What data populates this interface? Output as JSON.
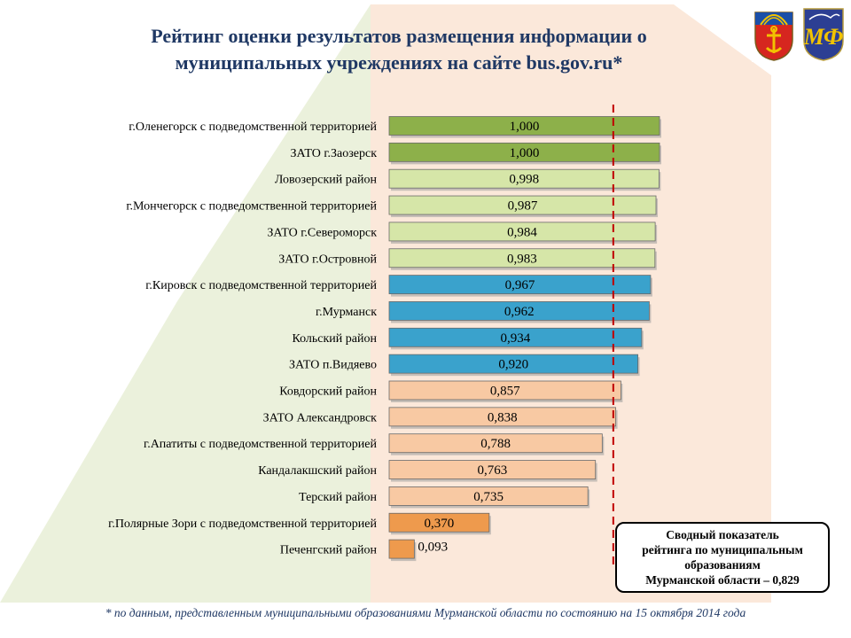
{
  "header": {
    "title_line1": "Рейтинг оценки результатов  размещения  информации о",
    "title_line2": "муниципальных учреждениях на сайте bus.gov.ru*"
  },
  "emblems": [
    "murmansk-region-coat-of-arms",
    "ministry-of-finance-logo"
  ],
  "summary_box": {
    "line1": "Сводный показатель",
    "line2": "рейтинга по муниципальным",
    "line3": "образованиям",
    "line4": "Мурманской области – 0,829"
  },
  "footnote": "* по данным, представленным  муниципальными образованиями Мурманской области по состоянию на 15 октября 2014 года",
  "colors": {
    "title": "#1f3864",
    "green_dark": "#8db04a",
    "green_light": "#d6e6a8",
    "blue": "#3aa2cc",
    "peach": "#f8c9a3",
    "orange": "#ee9a4d",
    "threshold_line": "#c00000"
  },
  "chart_data": {
    "type": "bar",
    "orientation": "horizontal",
    "title": "Рейтинг оценки результатов  размещения  информации о муниципальных учреждениях на сайте bus.gov.ru*",
    "xlim": [
      0,
      1.0
    ],
    "grid": false,
    "reference_line": {
      "value": 0.829,
      "style": "dashed"
    },
    "categories": [
      "г.Оленегорск с подведомственной территорией",
      "ЗАТО г.Заозерск",
      "Ловозерский район",
      "г.Мончегорск с подведомственной территорией",
      "ЗАТО г.Североморск",
      "ЗАТО г.Островной",
      "г.Кировск с подведомственной территорией",
      "г.Мурманск",
      "Кольский район",
      "ЗАТО п.Видяево",
      "Ковдорский район",
      "ЗАТО Александровск",
      "г.Апатиты с подведомственной территорией",
      "Кандалакшский район",
      "Терский район",
      "г.Полярные Зори с подведомственной территорией",
      "Печенгский район"
    ],
    "values": [
      1.0,
      1.0,
      0.998,
      0.987,
      0.984,
      0.983,
      0.967,
      0.962,
      0.934,
      0.92,
      0.857,
      0.838,
      0.788,
      0.763,
      0.735,
      0.37,
      0.093
    ],
    "value_labels": [
      "1,000",
      "1,000",
      "0,998",
      "0,987",
      "0,984",
      "0,983",
      "0,967",
      "0,962",
      "0,934",
      "0,920",
      "0,857",
      "0,838",
      "0,788",
      "0,763",
      "0,735",
      "0,370",
      "0,093"
    ],
    "bar_colors": [
      "#8db04a",
      "#8db04a",
      "#d6e6a8",
      "#d6e6a8",
      "#d6e6a8",
      "#d6e6a8",
      "#3aa2cc",
      "#3aa2cc",
      "#3aa2cc",
      "#3aa2cc",
      "#f8c9a3",
      "#f8c9a3",
      "#f8c9a3",
      "#f8c9a3",
      "#f8c9a3",
      "#ee9a4d",
      "#ee9a4d"
    ]
  }
}
